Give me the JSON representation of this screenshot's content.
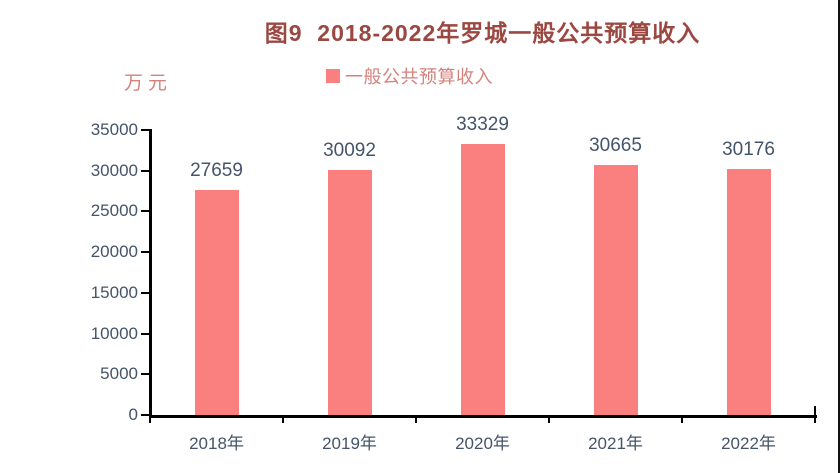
{
  "chart_title": "图9  2018-2022年罗城一般公共预算收入",
  "axis_unit_label": "万元",
  "legend": {
    "label": "一般公共预算收入"
  },
  "colors": {
    "bar": "#FA8080",
    "title_text": "#9C4842",
    "axis_text": "#44546A",
    "unit_text": "#D5827D",
    "legend_text": "#D5827D",
    "axis_line": "#000000"
  },
  "chart_data": {
    "type": "bar",
    "title": "图9  2018-2022年罗城一般公共预算收入",
    "series_name": "一般公共预算收入",
    "categories": [
      "2018年",
      "2019年",
      "2020年",
      "2021年",
      "2022年"
    ],
    "values": [
      27659,
      30092,
      33329,
      30665,
      30176
    ],
    "ylabel": "万元",
    "ylim": [
      0,
      35000
    ],
    "yticks": [
      0,
      5000,
      10000,
      15000,
      20000,
      25000,
      30000,
      35000
    ],
    "data_labels_shown": true,
    "grid": false,
    "legend_position": "top-center"
  }
}
